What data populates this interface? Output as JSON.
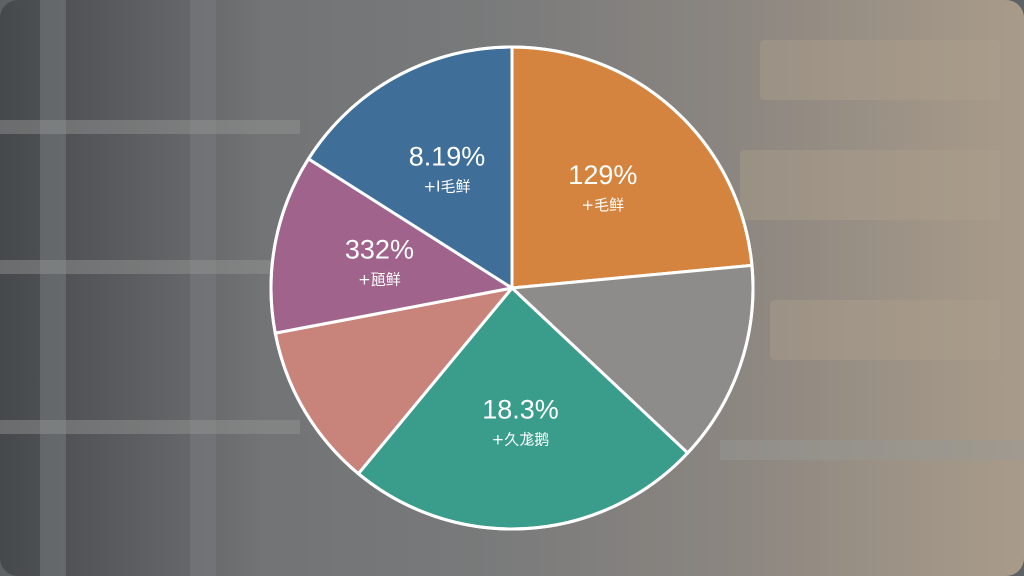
{
  "chart_data": {
    "type": "pie",
    "slices": [
      {
        "label": "129%",
        "sublabel": "+毛鲜",
        "value": 23.5,
        "color": "#d4843e"
      },
      {
        "label": "",
        "sublabel": "",
        "value": 13.5,
        "color": "#8d8c8a"
      },
      {
        "label": "18.3%",
        "sublabel": "+久尨鹅",
        "value": 24.0,
        "color": "#3a9c8b"
      },
      {
        "label": "",
        "sublabel": "",
        "value": 11.0,
        "color": "#c8847a"
      },
      {
        "label": "332%",
        "sublabel": "+瓸鲜",
        "value": 12.0,
        "color": "#a0648c"
      },
      {
        "label": "8.19%",
        "sublabel": "+I毛鲜",
        "value": 16.0,
        "color": "#3f6e98"
      }
    ],
    "start_angle_deg": 0,
    "direction": "clockwise",
    "border_color": "#ffffff"
  }
}
